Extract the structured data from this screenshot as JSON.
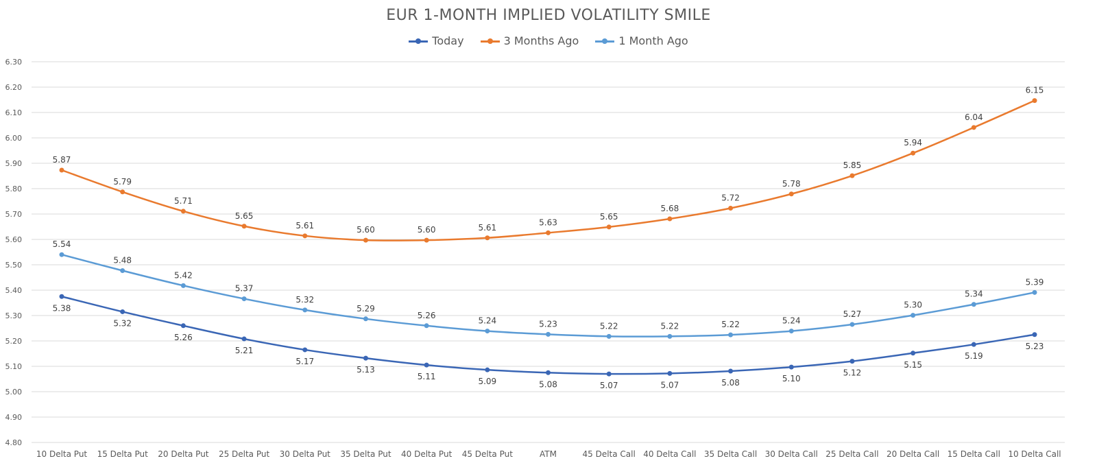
{
  "chart_data": {
    "type": "line",
    "title": "EUR 1-MONTH IMPLIED VOLATILITY SMILE",
    "xlabel": "",
    "ylabel": "",
    "ylim": [
      4.8,
      6.3
    ],
    "y_ticks": [
      "6.30",
      "6.20",
      "6.10",
      "6.00",
      "5.90",
      "5.80",
      "5.70",
      "5.60",
      "5.50",
      "5.40",
      "5.30",
      "5.20",
      "5.10",
      "5.00",
      "4.90",
      "4.80"
    ],
    "grid": true,
    "legend_position": "top",
    "categories": [
      "10 Delta Put",
      "15 Delta Put",
      "20 Delta Put",
      "25 Delta Put",
      "30 Delta Put",
      "35 Delta Put",
      "40 Delta Put",
      "45 Delta Put",
      "ATM",
      "45 Delta Call",
      "40 Delta Call",
      "35 Delta Call",
      "30 Delta Call",
      "25 Delta Call",
      "20 Delta Call",
      "15 Delta Call",
      "10 Delta Call"
    ],
    "series": [
      {
        "name": "Today",
        "color": "#3a66b5",
        "label_position": "below",
        "values": [
          5.375,
          5.315,
          5.26,
          5.208,
          5.165,
          5.132,
          5.105,
          5.086,
          5.075,
          5.07,
          5.072,
          5.081,
          5.097,
          5.12,
          5.152,
          5.186,
          5.225
        ],
        "labels": [
          "5.38",
          "5.32",
          "5.26",
          "5.21",
          "5.17",
          "5.13",
          "5.11",
          "5.09",
          "5.08",
          "5.07",
          "5.07",
          "5.08",
          "5.10",
          "5.12",
          "5.15",
          "5.19",
          "5.23"
        ]
      },
      {
        "name": "3 Months Ago",
        "color": "#e97a2e",
        "label_position": "above",
        "values": [
          5.873,
          5.787,
          5.711,
          5.652,
          5.614,
          5.597,
          5.597,
          5.606,
          5.626,
          5.649,
          5.681,
          5.723,
          5.779,
          5.851,
          5.94,
          6.041,
          6.147
        ],
        "labels": [
          "5.87",
          "5.79",
          "5.71",
          "5.65",
          "5.61",
          "5.60",
          "5.60",
          "5.61",
          "5.63",
          "5.65",
          "5.68",
          "5.72",
          "5.78",
          "5.85",
          "5.94",
          "6.04",
          "6.15"
        ]
      },
      {
        "name": "1 Month Ago",
        "color": "#5b9bd5",
        "label_position": "above",
        "values": [
          5.54,
          5.477,
          5.418,
          5.366,
          5.322,
          5.287,
          5.26,
          5.239,
          5.226,
          5.218,
          5.218,
          5.224,
          5.239,
          5.265,
          5.301,
          5.344,
          5.391
        ],
        "labels": [
          "5.54",
          "5.48",
          "5.42",
          "5.37",
          "5.32",
          "5.29",
          "5.26",
          "5.24",
          "5.23",
          "5.22",
          "5.22",
          "5.22",
          "5.24",
          "5.27",
          "5.30",
          "5.34",
          "5.39"
        ]
      }
    ]
  }
}
